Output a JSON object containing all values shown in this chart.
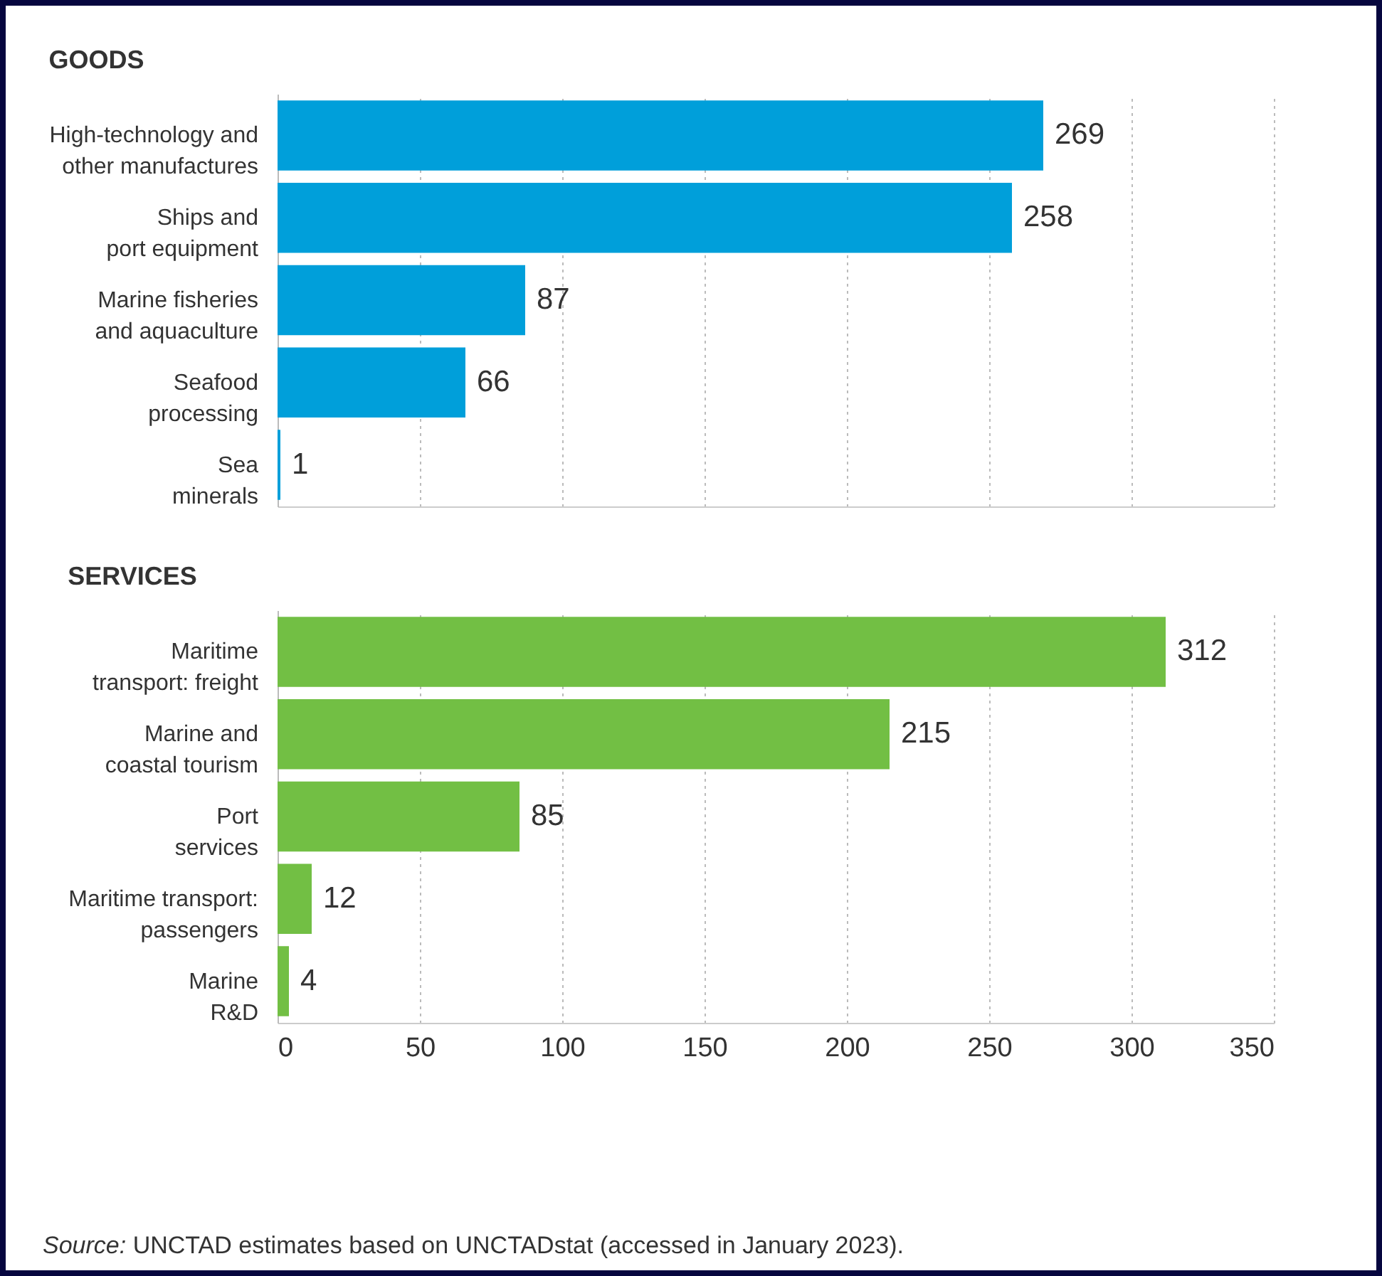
{
  "chart_data": [
    {
      "type": "bar",
      "orientation": "horizontal",
      "title": "GOODS",
      "categories": [
        "High-technology and other manufactures",
        "Ships and port equipment",
        "Marine fisheries and aquaculture",
        "Seafood processing",
        "Sea minerals"
      ],
      "values": [
        269,
        258,
        87,
        66,
        1
      ],
      "color": "#009fda",
      "data_labels": true,
      "xlim": [
        0,
        350
      ],
      "xticks": [
        0,
        50,
        100,
        150,
        200,
        250,
        300,
        350
      ],
      "grid": "x",
      "tick_labels": "y"
    },
    {
      "type": "bar",
      "orientation": "horizontal",
      "title": "SERVICES",
      "categories": [
        "Maritime transport: freight",
        "Marine and coastal tourism",
        "Port services",
        "Maritime transport: passengers",
        "Marine R&D"
      ],
      "values": [
        312,
        215,
        85,
        12,
        4
      ],
      "color": "#72bf44",
      "data_labels": true,
      "xlim": [
        0,
        350
      ],
      "xticks": [
        0,
        50,
        100,
        150,
        200,
        250,
        300,
        350
      ],
      "grid": "x",
      "annotations": [
        "Source: UNCTAD estimates based on UNCTADstat (accessed in January 2023)."
      ]
    }
  ]
}
